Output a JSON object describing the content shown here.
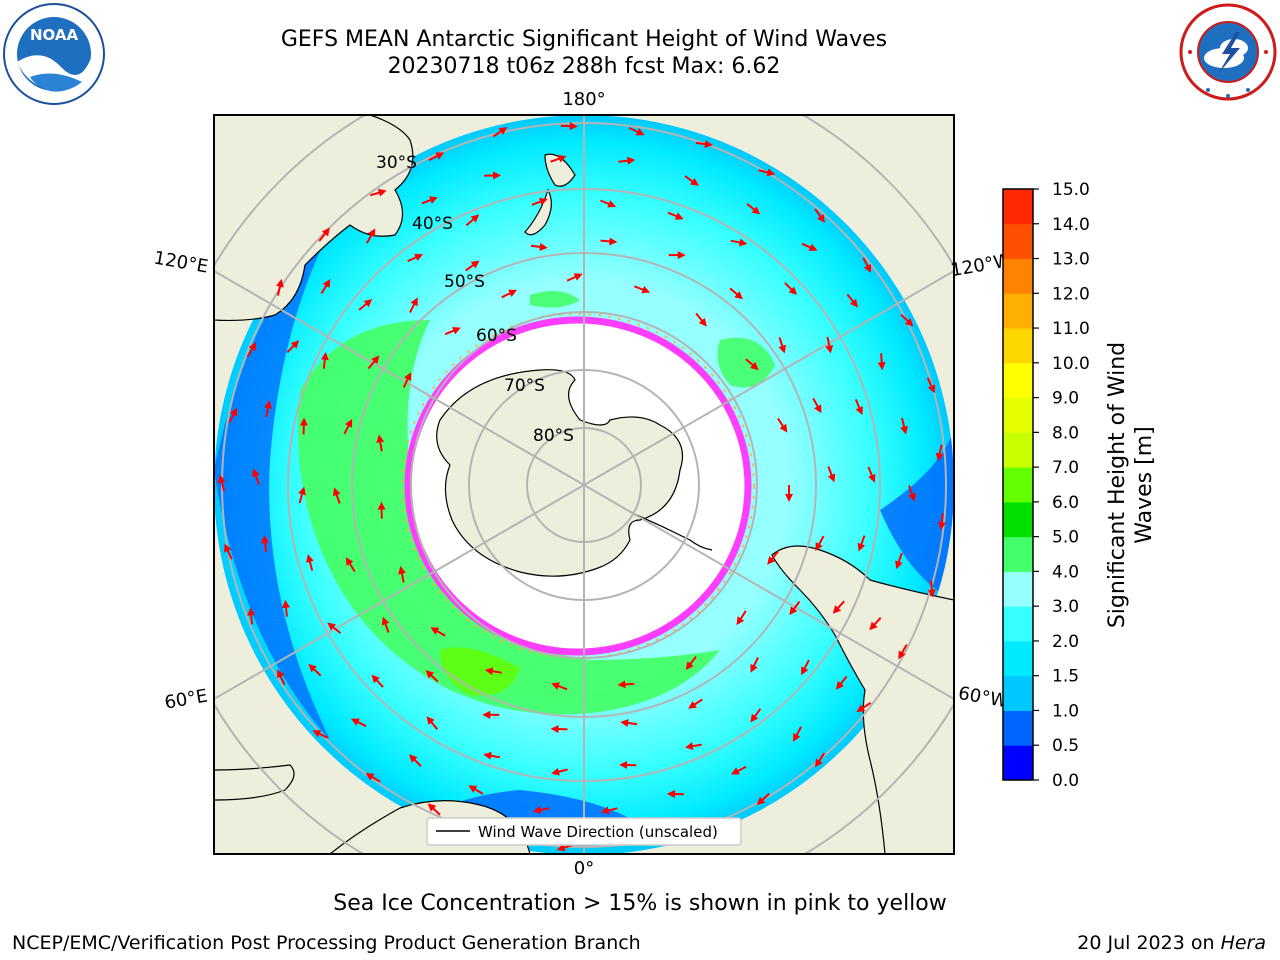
{
  "header": {
    "title_line1": "GEFS MEAN Antarctic Significant Height of Wind Waves",
    "title_line2": "20230718 t06z 288h fcst   Max: 6.62"
  },
  "logos": {
    "left": "noaa-logo",
    "left_text": "NOAA",
    "left_ring_text": "NATIONAL OCEANIC AND ATMOSPHERIC ADMINISTRATION · U.S. DEPARTMENT OF COMMERCE",
    "right": "nws-logo",
    "right_ring_text": "NATIONAL WEATHER SERVICE"
  },
  "map": {
    "projection": "south-polar-stereographic",
    "lat_labels": [
      "30°S",
      "40°S",
      "50°S",
      "60°S",
      "70°S",
      "80°S"
    ],
    "lon_labels": {
      "top": "180°",
      "bottom": "0°",
      "upper_left": "120°E",
      "upper_right": "120°W",
      "lower_left": "60°E",
      "lower_right": "60°W"
    },
    "legend_label": "Wind Wave Direction (unscaled)",
    "colors": {
      "land": "#eeeedc",
      "ice_edge": "#ff3dff",
      "arrow": "#ff0000",
      "grid": "#b4b4b4"
    }
  },
  "colorbar": {
    "label_line1": "Significant Height of Wind",
    "label_line2": "Waves [m]",
    "ticks": [
      "0.0",
      "0.5",
      "1.0",
      "1.5",
      "2.0",
      "3.0",
      "4.0",
      "5.0",
      "6.0",
      "7.0",
      "8.0",
      "9.0",
      "10.0",
      "11.0",
      "12.0",
      "13.0",
      "14.0",
      "15.0"
    ],
    "colors": [
      "#0000ff",
      "#0064ff",
      "#00c8ff",
      "#00eaff",
      "#38ffff",
      "#96ffff",
      "#44ff6a",
      "#00e100",
      "#64ff00",
      "#c8ff00",
      "#e6ff00",
      "#ffff00",
      "#ffd700",
      "#ffaf00",
      "#ff8200",
      "#ff5000",
      "#ff2800",
      "#ff0000"
    ]
  },
  "footer": {
    "note": "Sea Ice Concentration > 15% is shown in pink to yellow",
    "credit": "NCEP/EMC/Verification Post Processing Product Generation Branch",
    "date": "20 Jul 2023 on",
    "machine": "Hera"
  }
}
